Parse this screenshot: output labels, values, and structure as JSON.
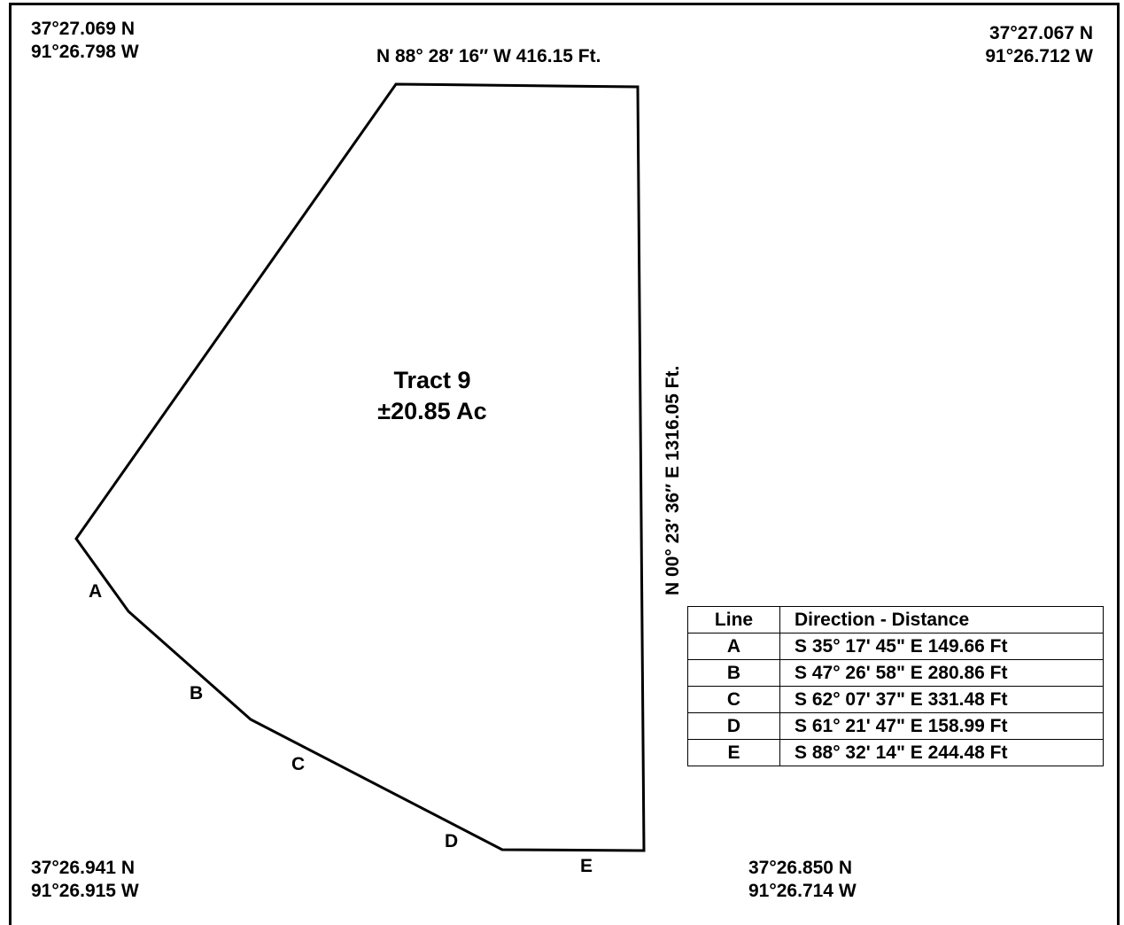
{
  "corners": {
    "top_left": {
      "lat": "37°27.069 N",
      "lon": "91°26.798 W"
    },
    "top_right": {
      "lat": "37°27.067 N",
      "lon": "91°26.712 W"
    },
    "bottom_left": {
      "lat": "37°26.941 N",
      "lon": "91°26.915 W"
    },
    "bottom_right": {
      "lat": "37°26.850 N",
      "lon": "91°26.714 W"
    }
  },
  "bearings": {
    "north": "N 88° 28′ 16″ W 416.15 Ft.",
    "east": "N 00° 23′ 36″ E  1316.05 Ft."
  },
  "tract": {
    "name": "Tract 9",
    "area": "±20.85 Ac"
  },
  "segment_labels": [
    "A",
    "B",
    "C",
    "D",
    "E"
  ],
  "table": {
    "headers": [
      "Line",
      "Direction - Distance"
    ],
    "rows": [
      {
        "line": "A",
        "direction": "S 35° 17' 45\" E 149.66 Ft"
      },
      {
        "line": "B",
        "direction": "S 47° 26' 58\" E 280.86 Ft"
      },
      {
        "line": "C",
        "direction": "S 62° 07' 37\" E 331.48 Ft"
      },
      {
        "line": "D",
        "direction": "S 61° 21' 47\" E 158.99 Ft"
      },
      {
        "line": "E",
        "direction": "S 88° 32' 14\" E 244.48 Ft"
      }
    ]
  }
}
